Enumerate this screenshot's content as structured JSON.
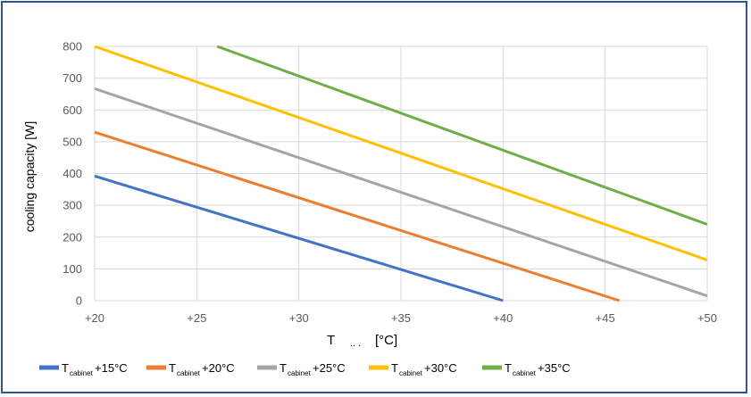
{
  "chart_data": {
    "type": "line",
    "xlabel": "T",
    "xlabel_partial": ".. .",
    "xlabel_unit": "[°C]",
    "ylabel": "cooling capacity [W]",
    "xlim": [
      20,
      50
    ],
    "ylim": [
      0,
      800
    ],
    "x_ticks": [
      20,
      25,
      30,
      35,
      40,
      45,
      50
    ],
    "x_tick_labels": [
      "+20",
      "+25",
      "+30",
      "+35",
      "+40",
      "+45",
      "+50"
    ],
    "y_ticks": [
      0,
      100,
      200,
      300,
      400,
      500,
      600,
      700,
      800
    ],
    "y_tick_labels": [
      "0",
      "100",
      "200",
      "300",
      "400",
      "500",
      "600",
      "700",
      "800"
    ],
    "grid": true,
    "legend_position": "bottom-left",
    "series": [
      {
        "name": "T",
        "sub": "cabinet",
        "suffix": " +15°C",
        "color": "#4472c4",
        "x": [
          20,
          40
        ],
        "y": [
          392,
          0
        ]
      },
      {
        "name": "T",
        "sub": "cabinet",
        "suffix": " +20°C",
        "color": "#ed7d31",
        "x": [
          20,
          45.7
        ],
        "y": [
          530,
          0
        ]
      },
      {
        "name": "T",
        "sub": "cabinet",
        "suffix": " +25°C",
        "color": "#a5a5a5",
        "x": [
          20,
          50
        ],
        "y": [
          667,
          15
        ]
      },
      {
        "name": "T",
        "sub": "cabinet",
        "suffix": " +30°C",
        "color": "#ffc000",
        "x": [
          20,
          50
        ],
        "y": [
          800,
          128
        ]
      },
      {
        "name": "T",
        "sub": "cabinet",
        "suffix": " +35°C",
        "color": "#70ad47",
        "x": [
          26,
          50
        ],
        "y": [
          800,
          240
        ]
      }
    ]
  }
}
